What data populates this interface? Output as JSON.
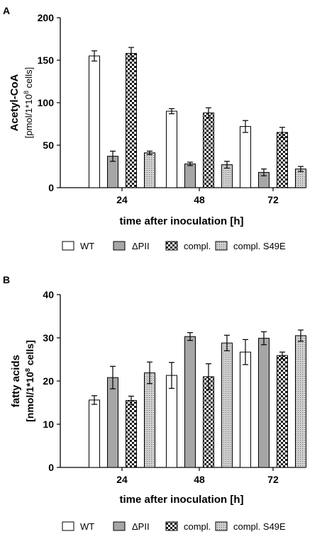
{
  "chart_data": [
    {
      "type": "bar",
      "panel_label": "A",
      "categories": [
        "24",
        "48",
        "72"
      ],
      "xlabel": "time after inoculation [h]",
      "ylabel_line1": "Acetyl-CoA",
      "ylabel_line2_prefix": "[pmol/1*10",
      "ylabel_line2_exp": "8",
      "ylabel_line2_suffix": " cells]",
      "ylim": [
        0,
        200
      ],
      "yticks": [
        "0",
        "50",
        "100",
        "150",
        "200"
      ],
      "series": [
        {
          "name": "WT",
          "values": [
            155,
            90,
            72
          ],
          "errors": [
            6,
            3,
            7
          ]
        },
        {
          "name": "ΔPII",
          "values": [
            37,
            28,
            18
          ],
          "errors": [
            6,
            2,
            4
          ]
        },
        {
          "name": "compl.",
          "values": [
            158,
            88,
            65
          ],
          "errors": [
            7,
            6,
            6
          ]
        },
        {
          "name": "compl. S49E",
          "values": [
            41,
            27,
            22
          ],
          "errors": [
            2,
            4,
            3
          ]
        }
      ],
      "legend_position": "bottom"
    },
    {
      "type": "bar",
      "panel_label": "B",
      "categories": [
        "24",
        "48",
        "72"
      ],
      "xlabel": "time after inoculation [h]",
      "ylabel_line1": "fatty acids",
      "ylabel_line2_prefix": "[nmol/1*10",
      "ylabel_line2_exp": "8",
      "ylabel_line2_suffix": " cells]",
      "ylim": [
        0,
        40
      ],
      "yticks": [
        "0",
        "10",
        "20",
        "30",
        "40"
      ],
      "series": [
        {
          "name": "WT",
          "values": [
            15.6,
            21.3,
            26.7
          ],
          "errors": [
            1.0,
            3.0,
            2.9
          ]
        },
        {
          "name": "ΔPII",
          "values": [
            20.8,
            30.3,
            29.9
          ],
          "errors": [
            2.6,
            0.9,
            1.5
          ]
        },
        {
          "name": "compl.",
          "values": [
            15.5,
            21.0,
            25.9
          ],
          "errors": [
            1.0,
            3.0,
            0.8
          ]
        },
        {
          "name": "compl. S49E",
          "values": [
            21.9,
            28.8,
            30.5
          ],
          "errors": [
            2.5,
            1.8,
            1.3
          ]
        }
      ],
      "legend_position": "bottom"
    }
  ],
  "legend": {
    "wt": "WT",
    "dpii": "ΔPII",
    "compl": "compl.",
    "compl_s49e": "compl. S49E"
  }
}
